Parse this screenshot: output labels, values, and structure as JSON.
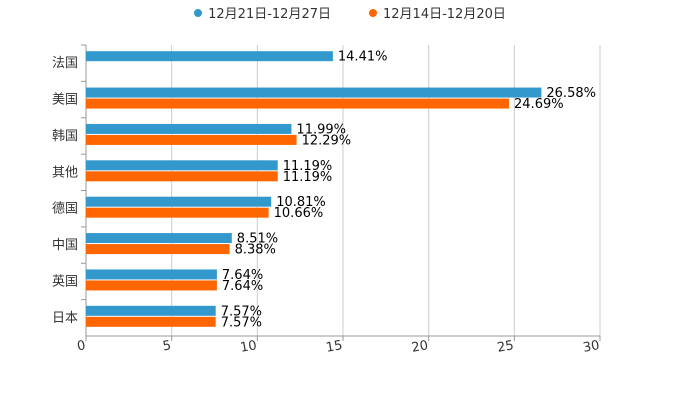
{
  "chart_data": {
    "type": "bar",
    "orientation": "horizontal",
    "categories": [
      "法国",
      "美国",
      "韩国",
      "其他",
      "德国",
      "中国",
      "英国",
      "日本"
    ],
    "series": [
      {
        "name": "12月21日-12月27日",
        "color": "#3399cc",
        "values": [
          14.41,
          26.58,
          11.99,
          11.19,
          10.81,
          8.51,
          7.64,
          7.57
        ],
        "labels": [
          "14.41%",
          "26.58%",
          "11.99%",
          "11.19%",
          "10.81%",
          "8.51%",
          "7.64%",
          "7.57%"
        ]
      },
      {
        "name": "12月14日-12月20日",
        "color": "#ff6600",
        "values": [
          null,
          24.69,
          12.29,
          11.19,
          10.66,
          8.38,
          7.64,
          7.57
        ],
        "labels": [
          null,
          "24.69%",
          "12.29%",
          "11.19%",
          "10.66%",
          "8.38%",
          "7.64%",
          "7.57%"
        ]
      }
    ],
    "xlim": [
      0,
      30
    ],
    "xticks": [
      0,
      5,
      10,
      15,
      20,
      25,
      30
    ],
    "xtick_labels": [
      "0",
      "5",
      "10",
      "15",
      "20",
      "25",
      "30"
    ],
    "grid": true,
    "legend_position": "top-center",
    "title": "",
    "xlabel": "",
    "ylabel": ""
  }
}
